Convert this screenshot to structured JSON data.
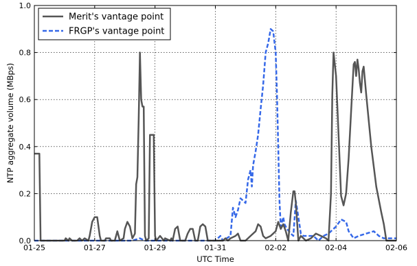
{
  "chart_data": {
    "type": "line",
    "title": "",
    "xlabel": "UTC Time",
    "ylabel": "NTP aggregate volume (MBps)",
    "xlim": [
      "01-25",
      "02-06"
    ],
    "ylim": [
      0,
      1.0
    ],
    "grid": true,
    "legend_position": "top-left",
    "x_ticks": [
      "01-25",
      "01-27",
      "01-29",
      "01-31",
      "02-02",
      "02-04",
      "02-06"
    ],
    "y_ticks": [
      "0.0",
      "0.2",
      "0.4",
      "0.6",
      "0.8",
      "1.0"
    ],
    "series": [
      {
        "name": "Merit's vantage point",
        "color": "#555555",
        "style": "solid",
        "points": [
          [
            "01-25 00:00",
            0.37
          ],
          [
            "01-25 04:00",
            0.37
          ],
          [
            "01-25 05:00",
            0.0
          ],
          [
            "01-26 00:00",
            0.0
          ],
          [
            "01-26 01:00",
            0.01
          ],
          [
            "01-26 03:00",
            0.0
          ],
          [
            "01-26 04:00",
            0.01
          ],
          [
            "01-26 06:00",
            0.0
          ],
          [
            "01-26 10:00",
            0.0
          ],
          [
            "01-26 12:00",
            0.01
          ],
          [
            "01-26 14:00",
            0.0
          ],
          [
            "01-26 16:00",
            0.01
          ],
          [
            "01-26 19:00",
            0.0
          ],
          [
            "01-26 20:00",
            0.02
          ],
          [
            "01-26 22:00",
            0.08
          ],
          [
            "01-27 00:00",
            0.1
          ],
          [
            "01-27 02:00",
            0.1
          ],
          [
            "01-27 04:00",
            0.02
          ],
          [
            "01-27 05:00",
            0.0
          ],
          [
            "01-27 08:00",
            0.0
          ],
          [
            "01-27 09:00",
            0.01
          ],
          [
            "01-27 12:00",
            0.01
          ],
          [
            "01-27 13:00",
            0.0
          ],
          [
            "01-27 16:00",
            0.0
          ],
          [
            "01-27 18:00",
            0.04
          ],
          [
            "01-27 20:00",
            0.0
          ],
          [
            "01-27 23:00",
            0.01
          ],
          [
            "01-28 00:00",
            0.05
          ],
          [
            "01-28 02:00",
            0.08
          ],
          [
            "01-28 04:00",
            0.06
          ],
          [
            "01-28 06:00",
            0.01
          ],
          [
            "01-28 08:00",
            0.03
          ],
          [
            "01-28 09:00",
            0.24
          ],
          [
            "01-28 10:00",
            0.27
          ],
          [
            "01-28 11:00",
            0.52
          ],
          [
            "01-28 12:00",
            0.8
          ],
          [
            "01-28 13:00",
            0.6
          ],
          [
            "01-28 14:00",
            0.57
          ],
          [
            "01-28 15:00",
            0.57
          ],
          [
            "01-28 16:00",
            0.02
          ],
          [
            "01-28 17:00",
            0.0
          ],
          [
            "01-28 19:00",
            0.01
          ],
          [
            "01-28 20:00",
            0.45
          ],
          [
            "01-28 23:00",
            0.45
          ],
          [
            "01-29 00:00",
            0.02
          ],
          [
            "01-29 01:00",
            0.0
          ],
          [
            "01-29 04:00",
            0.02
          ],
          [
            "01-29 07:00",
            0.0
          ],
          [
            "01-29 08:00",
            0.01
          ],
          [
            "01-29 12:00",
            0.0
          ],
          [
            "01-29 13:00",
            0.01
          ],
          [
            "01-29 14:00",
            0.0
          ],
          [
            "01-29 16:00",
            0.05
          ],
          [
            "01-29 18:00",
            0.06
          ],
          [
            "01-29 20:00",
            0.0
          ],
          [
            "01-30 00:00",
            0.0
          ],
          [
            "01-30 02:00",
            0.03
          ],
          [
            "01-30 04:00",
            0.05
          ],
          [
            "01-30 06:00",
            0.05
          ],
          [
            "01-30 08:00",
            0.0
          ],
          [
            "01-30 10:00",
            0.0
          ],
          [
            "01-30 12:00",
            0.06
          ],
          [
            "01-30 14:00",
            0.07
          ],
          [
            "01-30 16:00",
            0.06
          ],
          [
            "01-30 18:00",
            0.0
          ],
          [
            "01-31 00:00",
            0.0
          ],
          [
            "01-31 06:00",
            0.0
          ],
          [
            "01-31 08:00",
            0.01
          ],
          [
            "01-31 10:00",
            0.0
          ],
          [
            "01-31 12:00",
            0.01
          ],
          [
            "01-31 16:00",
            0.02
          ],
          [
            "01-31 18:00",
            0.03
          ],
          [
            "01-31 20:00",
            0.0
          ],
          [
            "02-01 00:00",
            0.0
          ],
          [
            "02-01 04:00",
            0.02
          ],
          [
            "02-01 08:00",
            0.04
          ],
          [
            "02-01 10:00",
            0.07
          ],
          [
            "02-01 12:00",
            0.06
          ],
          [
            "02-01 14:00",
            0.02
          ],
          [
            "02-01 16:00",
            0.01
          ],
          [
            "02-01 20:00",
            0.02
          ],
          [
            "02-02 00:00",
            0.04
          ],
          [
            "02-02 02:00",
            0.08
          ],
          [
            "02-02 04:00",
            0.05
          ],
          [
            "02-02 06:00",
            0.07
          ],
          [
            "02-02 08:00",
            0.04
          ],
          [
            "02-02 10:00",
            0.0
          ],
          [
            "02-02 12:00",
            0.12
          ],
          [
            "02-02 14:00",
            0.21
          ],
          [
            "02-02 15:00",
            0.21
          ],
          [
            "02-02 16:00",
            0.16
          ],
          [
            "02-02 18:00",
            0.0
          ],
          [
            "02-02 20:00",
            0.02
          ],
          [
            "02-03 00:00",
            0.0
          ],
          [
            "02-03 04:00",
            0.01
          ],
          [
            "02-03 08:00",
            0.03
          ],
          [
            "02-03 12:00",
            0.02
          ],
          [
            "02-03 16:00",
            0.01
          ],
          [
            "02-03 18:00",
            0.0
          ],
          [
            "02-03 20:00",
            0.2
          ],
          [
            "02-03 21:00",
            0.62
          ],
          [
            "02-03 22:00",
            0.8
          ],
          [
            "02-04 00:00",
            0.7
          ],
          [
            "02-04 02:00",
            0.45
          ],
          [
            "02-04 04:00",
            0.19
          ],
          [
            "02-04 06:00",
            0.15
          ],
          [
            "02-04 08:00",
            0.2
          ],
          [
            "02-04 10:00",
            0.35
          ],
          [
            "02-04 12:00",
            0.55
          ],
          [
            "02-04 14:00",
            0.75
          ],
          [
            "02-04 15:00",
            0.76
          ],
          [
            "02-04 16:00",
            0.7
          ],
          [
            "02-04 17:00",
            0.77
          ],
          [
            "02-04 18:00",
            0.73
          ],
          [
            "02-04 19:00",
            0.67
          ],
          [
            "02-04 20:00",
            0.63
          ],
          [
            "02-04 21:00",
            0.72
          ],
          [
            "02-04 22:00",
            0.74
          ],
          [
            "02-05 00:00",
            0.62
          ],
          [
            "02-05 04:00",
            0.4
          ],
          [
            "02-05 08:00",
            0.23
          ],
          [
            "02-05 12:00",
            0.12
          ],
          [
            "02-05 14:00",
            0.07
          ],
          [
            "02-05 16:00",
            0.0
          ],
          [
            "02-06 00:00",
            0.0
          ]
        ]
      },
      {
        "name": "FRGP's vantage point",
        "color": "#3568e8",
        "style": "dashed",
        "points": [
          [
            "01-25 00:00",
            0.0
          ],
          [
            "01-28 06:00",
            0.0
          ],
          [
            "01-28 12:00",
            0.01
          ],
          [
            "01-28 16:00",
            0.0
          ],
          [
            "01-31 00:00",
            0.0
          ],
          [
            "01-31 04:00",
            0.02
          ],
          [
            "01-31 06:00",
            0.0
          ],
          [
            "01-31 12:00",
            0.02
          ],
          [
            "01-31 14:00",
            0.14
          ],
          [
            "01-31 16:00",
            0.1
          ],
          [
            "01-31 18:00",
            0.13
          ],
          [
            "01-31 20:00",
            0.18
          ],
          [
            "01-31 22:00",
            0.17
          ],
          [
            "02-01 00:00",
            0.16
          ],
          [
            "02-01 02:00",
            0.26
          ],
          [
            "02-01 04:00",
            0.3
          ],
          [
            "02-01 05:00",
            0.23
          ],
          [
            "02-01 06:00",
            0.32
          ],
          [
            "02-01 08:00",
            0.38
          ],
          [
            "02-01 10:00",
            0.45
          ],
          [
            "02-01 12:00",
            0.56
          ],
          [
            "02-01 14:00",
            0.66
          ],
          [
            "02-01 16:00",
            0.8
          ],
          [
            "02-01 18:00",
            0.84
          ],
          [
            "02-01 20:00",
            0.9
          ],
          [
            "02-01 22:00",
            0.89
          ],
          [
            "02-02 00:00",
            0.8
          ],
          [
            "02-02 01:00",
            0.62
          ],
          [
            "02-02 02:00",
            0.4
          ],
          [
            "02-02 03:00",
            0.17
          ],
          [
            "02-02 04:00",
            0.06
          ],
          [
            "02-02 06:00",
            0.1
          ],
          [
            "02-02 07:00",
            0.07
          ],
          [
            "02-02 09:00",
            0.05
          ],
          [
            "02-02 12:00",
            0.03
          ],
          [
            "02-02 14:00",
            0.02
          ],
          [
            "02-02 16:00",
            0.17
          ],
          [
            "02-02 18:00",
            0.1
          ],
          [
            "02-02 20:00",
            0.03
          ],
          [
            "02-02 22:00",
            0.02
          ],
          [
            "02-03 00:00",
            0.02
          ],
          [
            "02-03 06:00",
            0.02
          ],
          [
            "02-03 10:00",
            0.0
          ],
          [
            "02-03 14:00",
            0.02
          ],
          [
            "02-03 18:00",
            0.03
          ],
          [
            "02-04 00:00",
            0.06
          ],
          [
            "02-04 04:00",
            0.09
          ],
          [
            "02-04 08:00",
            0.08
          ],
          [
            "02-04 10:00",
            0.04
          ],
          [
            "02-04 14:00",
            0.01
          ],
          [
            "02-04 18:00",
            0.02
          ],
          [
            "02-05 00:00",
            0.03
          ],
          [
            "02-05 06:00",
            0.04
          ],
          [
            "02-05 10:00",
            0.02
          ],
          [
            "02-05 14:00",
            0.01
          ],
          [
            "02-06 00:00",
            0.01
          ]
        ]
      }
    ]
  }
}
